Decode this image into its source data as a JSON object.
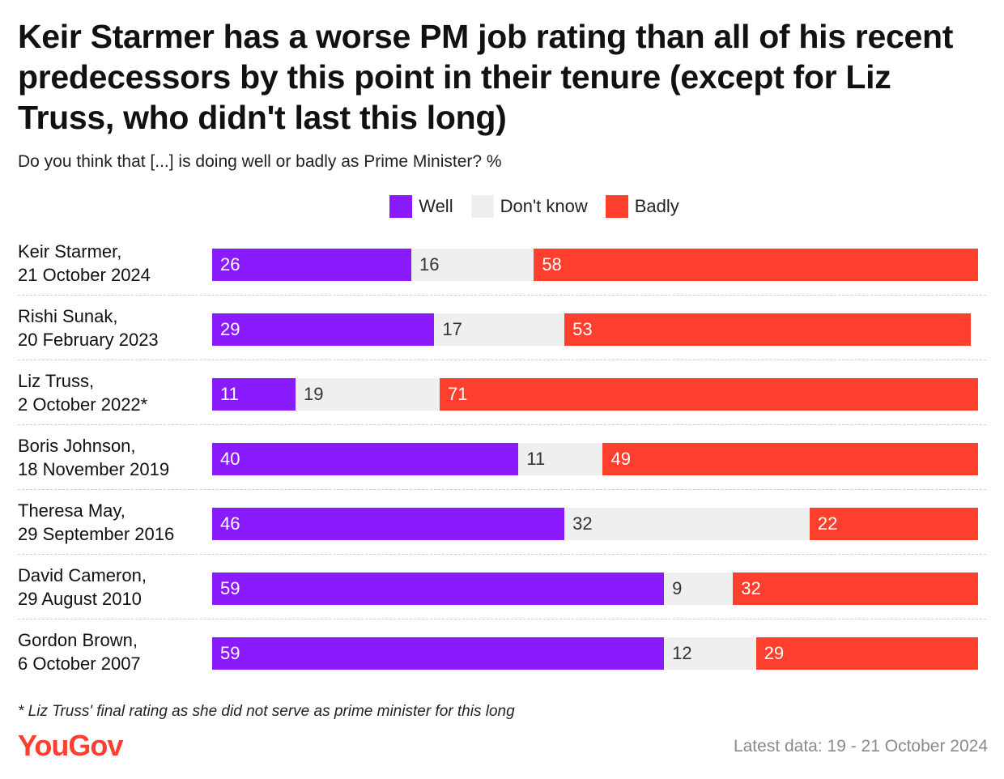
{
  "title": "Keir Starmer has a worse PM job rating than all of his recent predecessors by this point in their tenure (except for Liz Truss, who didn't last this long)",
  "subtitle": "Do you think that [...] is doing well or badly as Prime Minister? %",
  "legend": [
    {
      "label": "Well",
      "color": "#8B1BFF"
    },
    {
      "label": "Don't know",
      "color": "#EFEFEF"
    },
    {
      "label": "Badly",
      "color": "#FF3F2D"
    }
  ],
  "footnote": "* Liz Truss' final rating as she did not serve as prime minister for this long",
  "logo": "YouGov",
  "latest_data": "Latest data: 19 - 21 October 2024",
  "colors": {
    "well": "#8B1BFF",
    "dont_know": "#EFEFEF",
    "badly": "#FF3F2D",
    "logo": "#FF3F2D"
  },
  "chart_data": {
    "type": "bar",
    "orientation": "horizontal",
    "stacked": true,
    "title": "Keir Starmer has a worse PM job rating than all of his recent predecessors by this point in their tenure (except for Liz Truss, who didn't last this long)",
    "subtitle": "Do you think that [...] is doing well or badly as Prime Minister? %",
    "legend_position": "top-center",
    "grid": false,
    "categories": [
      {
        "name": "Keir Starmer,",
        "date": "21 October 2024"
      },
      {
        "name": "Rishi Sunak,",
        "date": "20 February 2023"
      },
      {
        "name": "Liz Truss,",
        "date": "2 October 2022*"
      },
      {
        "name": "Boris Johnson,",
        "date": "18 November 2019"
      },
      {
        "name": "Theresa May,",
        "date": "29 September 2016"
      },
      {
        "name": "David Cameron,",
        "date": "29 August 2010"
      },
      {
        "name": "Gordon Brown,",
        "date": "6 October 2007"
      }
    ],
    "series": [
      {
        "name": "Well",
        "values": [
          26,
          29,
          11,
          40,
          46,
          59,
          59
        ]
      },
      {
        "name": "Don't know",
        "values": [
          16,
          17,
          19,
          11,
          32,
          9,
          12
        ]
      },
      {
        "name": "Badly",
        "values": [
          58,
          53,
          71,
          49,
          22,
          32,
          29
        ]
      }
    ]
  }
}
